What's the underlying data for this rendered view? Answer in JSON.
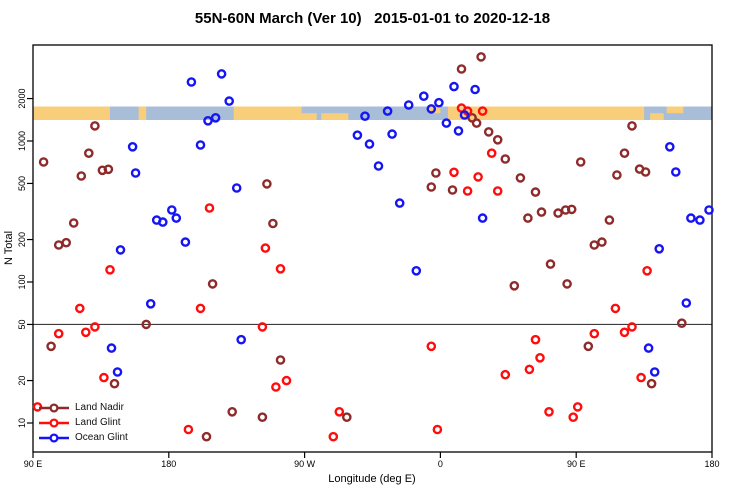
{
  "title": "55N-60N March (Ver 10)   2015-01-01 to 2020-12-18",
  "axes": {
    "x": {
      "label": "Longitude (deg E)",
      "ticks": [
        {
          "lon": 90,
          "label": "90 E"
        },
        {
          "lon": 180,
          "label": "180"
        },
        {
          "lon": 270,
          "label": "90 W"
        },
        {
          "lon": 360,
          "label": "0"
        },
        {
          "lon": 450,
          "label": "90 E"
        },
        {
          "lon": 540,
          "label": "180"
        }
      ]
    },
    "y": {
      "label": "N Total",
      "scale": "log",
      "ticks": [
        10,
        20,
        50,
        100,
        200,
        500,
        1000,
        2000
      ]
    }
  },
  "reference_line": {
    "value": 50,
    "color": "#3c3c3c"
  },
  "map_strip": {
    "comment": "world coastline band for 55N-60N drawn across the plot near N=1400-1800",
    "n_range_approx": [
      1400,
      1800
    ],
    "ocean_color": "#a8bdd8",
    "land_color": "#f9ce7a",
    "land_segments": [
      {
        "from": 90,
        "to": 141,
        "part": "full"
      },
      {
        "from": 160,
        "to": 165,
        "part": "full"
      },
      {
        "from": 223,
        "to": 268,
        "part": "full"
      },
      {
        "from": 267,
        "to": 278,
        "part": "lower"
      },
      {
        "from": 281,
        "to": 299,
        "part": "lower"
      },
      {
        "from": 352,
        "to": 360,
        "part": "upper"
      },
      {
        "from": 365,
        "to": 495,
        "part": "full"
      },
      {
        "from": 499,
        "to": 508,
        "part": "lower"
      },
      {
        "from": 510,
        "to": 521,
        "part": "upper"
      }
    ]
  },
  "legend": {
    "items": [
      {
        "label": "Land Nadir",
        "series": "land_nadir",
        "color": "#8f2a2a"
      },
      {
        "label": "Land Glint",
        "series": "land_glint",
        "color": "#ff0d0d"
      },
      {
        "label": "Ocean Glint",
        "series": "ocean_glint",
        "color": "#1414f5"
      }
    ]
  },
  "chart_data": {
    "type": "scatter",
    "title": "55N-60N March (Ver 10)   2015-01-01 to 2020-12-18",
    "xlabel": "Longitude (deg E)",
    "ylabel": "N Total",
    "x_axis_note": "longitude axis runs 90E eastward wrapping past 180 and 0 back to 180 (continuous 90..540 deg)",
    "xlim": [
      90,
      540
    ],
    "ylim_log": [
      6,
      4800
    ],
    "marker": "open-circle",
    "series": [
      {
        "name": "Land Nadir",
        "color": "#8f2a2a",
        "points": [
          [
            97,
            710
          ],
          [
            107,
            183
          ],
          [
            112,
            190
          ],
          [
            117,
            262
          ],
          [
            122,
            565
          ],
          [
            127,
            820
          ],
          [
            131,
            1280
          ],
          [
            136,
            620
          ],
          [
            140,
            630
          ],
          [
            144,
            19
          ],
          [
            102,
            35
          ],
          [
            165,
            50
          ],
          [
            205,
            8
          ],
          [
            209,
            97
          ],
          [
            222,
            12
          ],
          [
            242,
            11
          ],
          [
            245,
            496
          ],
          [
            249,
            260
          ],
          [
            254,
            28
          ],
          [
            298,
            11
          ],
          [
            354,
            472
          ],
          [
            357,
            593
          ],
          [
            368,
            449
          ],
          [
            374,
            3240
          ],
          [
            381,
            1460
          ],
          [
            384,
            1340
          ],
          [
            387,
            3950
          ],
          [
            392,
            1160
          ],
          [
            398,
            1020
          ],
          [
            403,
            745
          ],
          [
            409,
            94
          ],
          [
            413,
            547
          ],
          [
            418,
            284
          ],
          [
            423,
            434
          ],
          [
            427,
            313
          ],
          [
            433,
            134
          ],
          [
            438,
            308
          ],
          [
            443,
            324
          ],
          [
            444,
            97
          ],
          [
            447,
            327
          ],
          [
            453,
            710
          ],
          [
            458,
            35
          ],
          [
            462,
            183
          ],
          [
            467,
            192
          ],
          [
            472,
            275
          ],
          [
            477,
            574
          ],
          [
            482,
            820
          ],
          [
            487,
            1280
          ],
          [
            492,
            632
          ],
          [
            496,
            603
          ],
          [
            500,
            19
          ],
          [
            520,
            51
          ]
        ]
      },
      {
        "name": "Land Glint",
        "color": "#ff0d0d",
        "points": [
          [
            93,
            13
          ],
          [
            107,
            43
          ],
          [
            121,
            65
          ],
          [
            125,
            44
          ],
          [
            131,
            48
          ],
          [
            137,
            21
          ],
          [
            141,
            122
          ],
          [
            193,
            9
          ],
          [
            201,
            65
          ],
          [
            207,
            335
          ],
          [
            242,
            48
          ],
          [
            244,
            174
          ],
          [
            251,
            18
          ],
          [
            254,
            124
          ],
          [
            258,
            20
          ],
          [
            289,
            8
          ],
          [
            293,
            12
          ],
          [
            354,
            35
          ],
          [
            358,
            9
          ],
          [
            369,
            600
          ],
          [
            374,
            1710
          ],
          [
            378,
            1630
          ],
          [
            378,
            442
          ],
          [
            385,
            556
          ],
          [
            388,
            1630
          ],
          [
            394,
            820
          ],
          [
            398,
            442
          ],
          [
            403,
            22
          ],
          [
            419,
            24
          ],
          [
            423,
            39
          ],
          [
            426,
            29
          ],
          [
            432,
            12
          ],
          [
            448,
            11
          ],
          [
            451,
            13
          ],
          [
            462,
            43
          ],
          [
            476,
            65
          ],
          [
            482,
            44
          ],
          [
            487,
            48
          ],
          [
            493,
            21
          ],
          [
            497,
            120
          ]
        ]
      },
      {
        "name": "Ocean Glint",
        "color": "#1414f5",
        "points": [
          [
            142,
            34
          ],
          [
            146,
            23
          ],
          [
            148,
            169
          ],
          [
            156,
            910
          ],
          [
            158,
            593
          ],
          [
            168,
            70
          ],
          [
            172,
            275
          ],
          [
            176,
            266
          ],
          [
            182,
            324
          ],
          [
            185,
            284
          ],
          [
            191,
            192
          ],
          [
            195,
            2620
          ],
          [
            201,
            937
          ],
          [
            206,
            1390
          ],
          [
            211,
            1460
          ],
          [
            215,
            2990
          ],
          [
            220,
            1920
          ],
          [
            225,
            464
          ],
          [
            228,
            39
          ],
          [
            305,
            1100
          ],
          [
            310,
            1500
          ],
          [
            313,
            950
          ],
          [
            319,
            665
          ],
          [
            325,
            1630
          ],
          [
            328,
            1120
          ],
          [
            333,
            363
          ],
          [
            339,
            1800
          ],
          [
            344,
            120
          ],
          [
            349,
            2080
          ],
          [
            354,
            1690
          ],
          [
            359,
            1870
          ],
          [
            364,
            1340
          ],
          [
            369,
            2430
          ],
          [
            372,
            1180
          ],
          [
            376,
            1530
          ],
          [
            383,
            2320
          ],
          [
            388,
            284
          ],
          [
            498,
            34
          ],
          [
            502,
            23
          ],
          [
            505,
            172
          ],
          [
            512,
            910
          ],
          [
            516,
            603
          ],
          [
            523,
            71
          ],
          [
            526,
            284
          ],
          [
            532,
            275
          ],
          [
            538,
            324
          ]
        ]
      }
    ]
  }
}
